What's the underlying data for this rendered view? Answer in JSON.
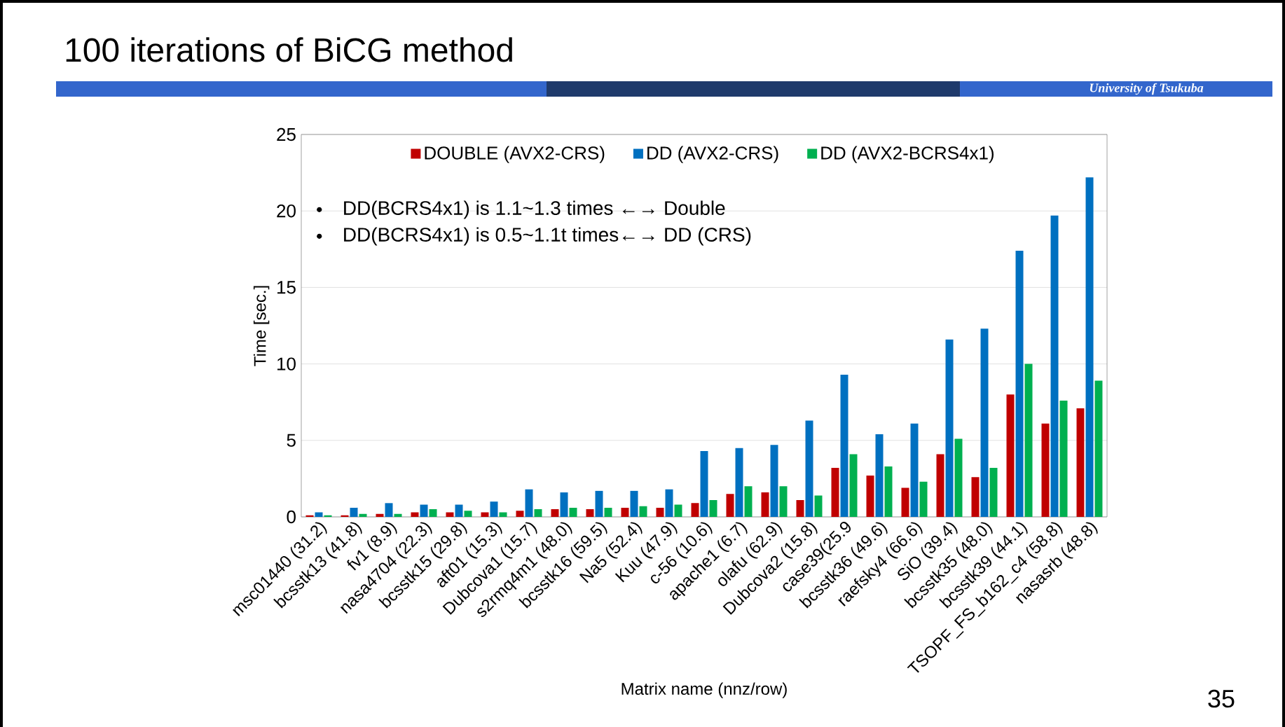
{
  "chart_data": {
    "type": "bar",
    "title": "100 iterations of BiCG method",
    "xlabel": "Matrix name (nnz/row)",
    "ylabel": "Time [sec.]",
    "categories": [
      "msc01440 (31.2)",
      "bcsstk13 (41.8)",
      "fv1 (8.9)",
      "nasa4704 (22.3)",
      "bcsstk15 (29.8)",
      "aft01 (15.3)",
      "Dubcova1 (15.7)",
      "s2rmq4m1 (48.0)",
      "bcsstk16 (59.5)",
      "Na5 (52.4)",
      "Kuu (47.9)",
      "c-56 (10.6)",
      "apache1 (6.7)",
      "olafu (62.9)",
      "Dubcova2 (15.8)",
      "case39(25.9",
      "bcsstk36 (49.6)",
      "raefsky4 (66.6)",
      "SiO (39.4)",
      "bcsstk35 (48.0)",
      "bcsstk39 (44.1)",
      "TSOPF_FS_b162_c4 (58.8)",
      "nasasrb (48.8)"
    ],
    "series": [
      {
        "name": "DOUBLE (AVX2-CRS)",
        "color": "#c00000",
        "values": [
          0.1,
          0.1,
          0.2,
          0.3,
          0.3,
          0.3,
          0.4,
          0.5,
          0.5,
          0.6,
          0.6,
          0.9,
          1.5,
          1.6,
          1.1,
          3.2,
          2.7,
          1.9,
          4.1,
          2.6,
          8.0,
          6.1,
          7.1
        ]
      },
      {
        "name": "DD (AVX2-CRS)",
        "color": "#0070c0",
        "values": [
          0.3,
          0.6,
          0.9,
          0.8,
          0.8,
          1.0,
          1.8,
          1.6,
          1.7,
          1.7,
          1.8,
          4.3,
          4.5,
          4.7,
          6.3,
          9.3,
          5.4,
          6.1,
          11.6,
          12.3,
          17.4,
          19.7,
          22.2
        ]
      },
      {
        "name": "DD (AVX2-BCRS4x1)",
        "color": "#00b050",
        "values": [
          0.1,
          0.2,
          0.2,
          0.5,
          0.4,
          0.3,
          0.5,
          0.6,
          0.6,
          0.7,
          0.8,
          1.1,
          2.0,
          2.0,
          1.4,
          4.1,
          3.3,
          2.3,
          5.1,
          3.2,
          10.0,
          7.6,
          8.9
        ]
      }
    ],
    "ylim": [
      0,
      25
    ],
    "yticks": [
      0,
      5,
      10,
      15,
      20,
      25
    ],
    "grid": "y",
    "legend": "top",
    "annotations": [
      "DD(BCRS4x1) is 1.1~1.3 times ←→ Double",
      "DD(BCRS4x1) is 0.5~1.1t times←→ DD (CRS)",
      "University of Tsukuba",
      "35"
    ]
  }
}
